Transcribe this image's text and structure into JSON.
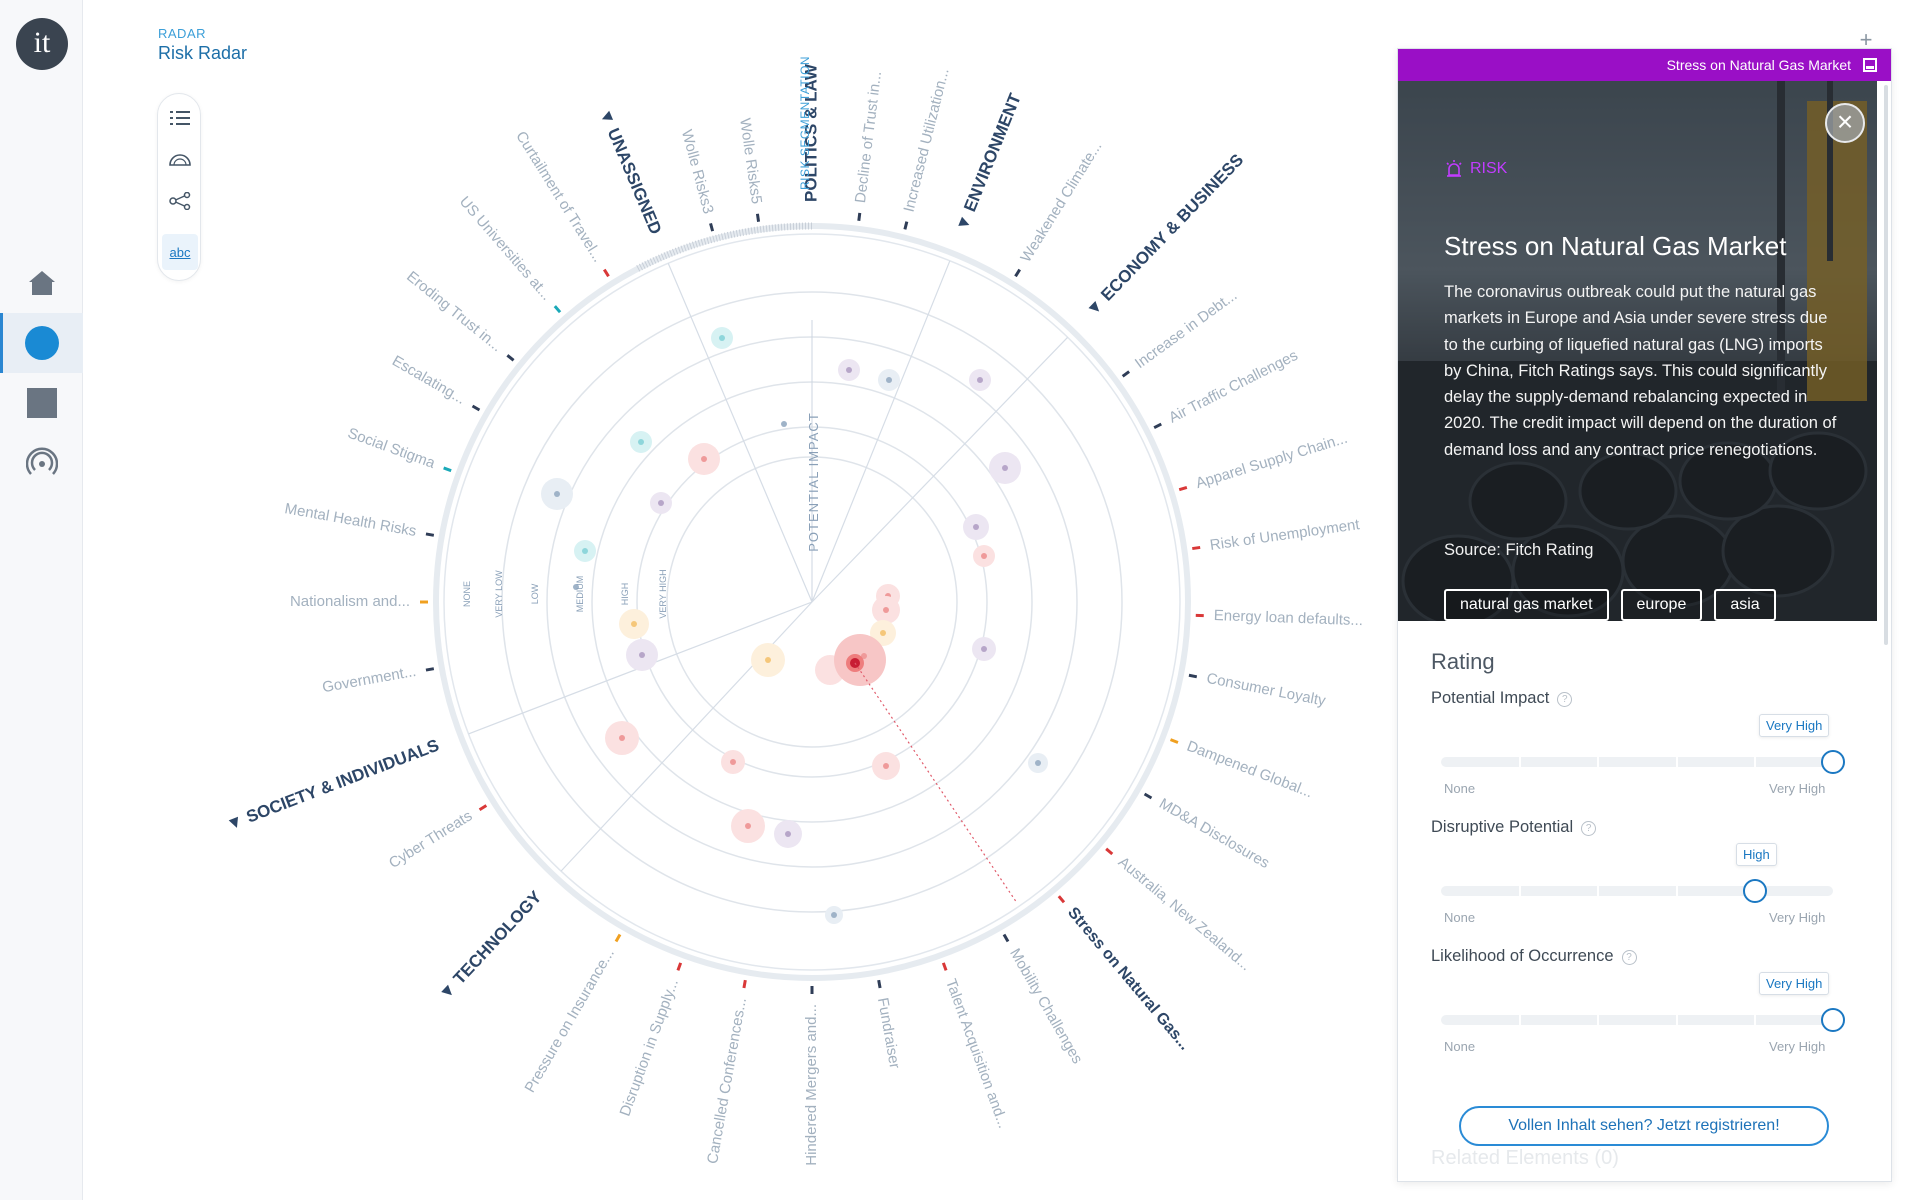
{
  "app": {
    "logo_text": "it"
  },
  "header": {
    "subtitle": "RADAR",
    "title": "Risk Radar"
  },
  "rail": {
    "items": [
      "home-icon",
      "radar-icon",
      "square-icon",
      "signal-icon"
    ],
    "active": 1
  },
  "view_tools": {
    "abc_label": "abc"
  },
  "radar": {
    "axis_title": "POTENTIAL IMPACT",
    "ring_labels": [
      "NONE",
      "VERY LOW",
      "LOW",
      "MEDIUM",
      "HIGH",
      "VERY HIGH"
    ],
    "segmentation_label": "RISK SEGMENTATION",
    "segments": [
      {
        "name": "POLITICS & LAW",
        "angle": 0
      },
      {
        "name": "ENVIRONMENT",
        "angle": 22
      },
      {
        "name": "ECONOMY & BUSINESS",
        "angle": 44
      },
      {
        "name": "UNASSIGNED",
        "angle": -23
      },
      {
        "name": "SOCIETY & INDIVIDUALS",
        "angle": -111
      },
      {
        "name": "TECHNOLOGY",
        "angle": -137
      }
    ],
    "labels": [
      {
        "text": "Wolle Risks5",
        "angle": -8,
        "color": "#2f3d57"
      },
      {
        "text": "Wolle Risks3",
        "angle": -15,
        "color": "#2f3d57"
      },
      {
        "text": "Curtailment of Travel...",
        "angle": -32,
        "color": "#d93838"
      },
      {
        "text": "US Universities at...",
        "angle": -41,
        "color": "#1aa9b8"
      },
      {
        "text": "Eroding Trust in...",
        "angle": -51,
        "color": "#2f3d57"
      },
      {
        "text": "Escalating...",
        "angle": -60,
        "color": "#2f3d57"
      },
      {
        "text": "Social Stigma",
        "angle": -70,
        "color": "#1aa9b8"
      },
      {
        "text": "Mental Health Risks",
        "angle": -80,
        "color": "#2f3d57"
      },
      {
        "text": "Nationalism and...",
        "angle": -90,
        "color": "#f0a020"
      },
      {
        "text": "Government...",
        "angle": -100,
        "color": "#2f3d57"
      },
      {
        "text": "Cyber Threats",
        "angle": -122,
        "color": "#d93838"
      },
      {
        "text": "Pressure on Insurance...",
        "angle": -150,
        "color": "#f0a020"
      },
      {
        "text": "Disruption in Supply...",
        "angle": -160,
        "color": "#d93838"
      },
      {
        "text": "Cancelled Conferences...",
        "angle": -170,
        "color": "#d93838"
      },
      {
        "text": "Hindered Mergers and...",
        "angle": -180,
        "color": "#2f3d57"
      },
      {
        "text": "Fundraiser",
        "angle": 170,
        "color": "#2f3d57"
      },
      {
        "text": "Talent Acquisition and...",
        "angle": 160,
        "color": "#d93838"
      },
      {
        "text": "Mobility Challenges",
        "angle": 150,
        "color": "#2f3d57"
      },
      {
        "text": "Stress on Natural Gas...",
        "angle": 140,
        "color": "#d93838",
        "selected": true
      },
      {
        "text": "Australia, New Zealand...",
        "angle": 130,
        "color": "#d93838"
      },
      {
        "text": "MD&A Disclosures",
        "angle": 120,
        "color": "#2f3d57"
      },
      {
        "text": "Dampened Global...",
        "angle": 111,
        "color": "#f0a020"
      },
      {
        "text": "Consumer Loyalty",
        "angle": 101,
        "color": "#2f3d57"
      },
      {
        "text": "Energy loan defaults...",
        "angle": 92,
        "color": "#d93838"
      },
      {
        "text": "Risk of Unemployment",
        "angle": 82,
        "color": "#d93838"
      },
      {
        "text": "Apparel Supply Chain...",
        "angle": 73,
        "color": "#d93838"
      },
      {
        "text": "Air Traffic Challenges",
        "angle": 63,
        "color": "#2f3d57"
      },
      {
        "text": "Increase in Debt...",
        "angle": 54,
        "color": "#2f3d57"
      },
      {
        "text": "Weakened Climate...",
        "angle": 32,
        "color": "#2f3d57"
      },
      {
        "text": "Increased Utilization...",
        "angle": 14,
        "color": "#2f3d57"
      },
      {
        "text": "Decline of Trust in...",
        "angle": 7,
        "color": "#2f3d57"
      }
    ]
  },
  "panel": {
    "header_title": "Stress on Natural Gas Market",
    "close_label": "×",
    "tag": "RISK",
    "title": "Stress on Natural Gas Market",
    "description": "The coronavirus outbreak could put the natural gas markets in Europe and Asia under severe stress due to the curbing of liquefied natural gas (LNG) imports by China, Fitch Ratings says. This could significantly delay the supply-demand rebalancing expected in 2020. The credit impact will depend on the duration of demand loss and any contract price renegotiations.",
    "source": "Source: Fitch Rating",
    "chips": [
      "natural gas market",
      "europe",
      "asia"
    ],
    "rating_title": "Rating",
    "sliders": [
      {
        "label": "Potential Impact",
        "value_label": "Very High",
        "level": 1.0
      },
      {
        "label": "Disruptive Potential",
        "value_label": "High",
        "level": 0.8
      },
      {
        "label": "Likelihood of Occurrence",
        "value_label": "Very High",
        "level": 1.0
      }
    ],
    "scale_min": "None",
    "scale_max": "Very High",
    "cta": "Vollen Inhalt sehen? Jetzt registrieren!",
    "related": "Related Elements (0)"
  },
  "plus_label": "+"
}
